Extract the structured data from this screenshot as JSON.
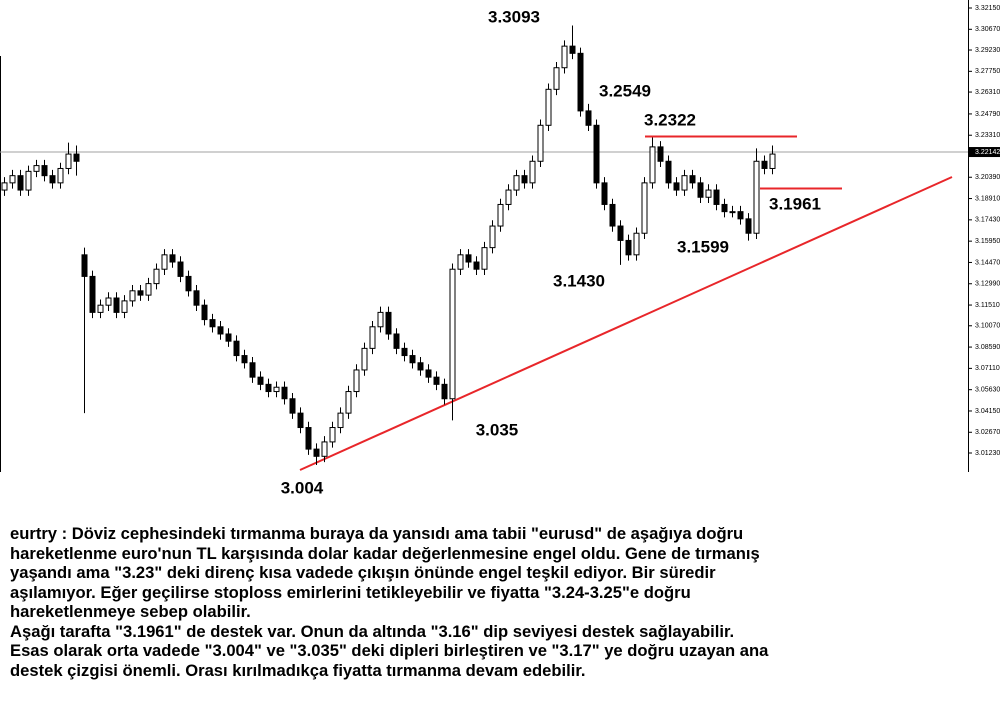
{
  "chart_data": {
    "type": "candlestick",
    "up_color": "#ffffff",
    "down_color": "#000000",
    "wick_color": "#000000",
    "ylim": [
      3.004,
      3.3345
    ],
    "yticks": [
      {
        "value": 3.3215,
        "label": "3.32150"
      },
      {
        "value": 3.3067,
        "label": "3.30670"
      },
      {
        "value": 3.2923,
        "label": "3.29230"
      },
      {
        "value": 3.2775,
        "label": "3.27750"
      },
      {
        "value": 3.2631,
        "label": "3.26310"
      },
      {
        "value": 3.2479,
        "label": "3.24790"
      },
      {
        "value": 3.2331,
        "label": "3.23310"
      },
      {
        "value": 3.2039,
        "label": "3.20390"
      },
      {
        "value": 3.1891,
        "label": "3.18910"
      },
      {
        "value": 3.1743,
        "label": "3.17430"
      },
      {
        "value": 3.1595,
        "label": "3.15950"
      },
      {
        "value": 3.1447,
        "label": "3.14470"
      },
      {
        "value": 3.1299,
        "label": "3.12990"
      },
      {
        "value": 3.1151,
        "label": "3.11510"
      },
      {
        "value": 3.1007,
        "label": "3.10070"
      },
      {
        "value": 3.0859,
        "label": "3.08590"
      },
      {
        "value": 3.0711,
        "label": "3.07110"
      },
      {
        "value": 3.0563,
        "label": "3.05630"
      },
      {
        "value": 3.0415,
        "label": "3.04150"
      },
      {
        "value": 3.0267,
        "label": "3.02670"
      },
      {
        "value": 3.0123,
        "label": "3.01230"
      }
    ],
    "current_price": {
      "value": 3.22142,
      "label": "3.22142"
    },
    "open": [
      3.195,
      3.2,
      3.205,
      3.195,
      3.208,
      3.212,
      3.205,
      3.2,
      3.21,
      3.22,
      3.15,
      3.135,
      3.11,
      3.115,
      3.12,
      3.11,
      3.118,
      3.125,
      3.122,
      3.13,
      3.14,
      3.15,
      3.145,
      3.135,
      3.125,
      3.115,
      3.105,
      3.1,
      3.095,
      3.09,
      3.08,
      3.075,
      3.065,
      3.06,
      3.055,
      3.058,
      3.05,
      3.04,
      3.03,
      3.015,
      3.01,
      3.02,
      3.03,
      3.04,
      3.055,
      3.07,
      3.085,
      3.1,
      3.11,
      3.095,
      3.085,
      3.08,
      3.075,
      3.07,
      3.065,
      3.06,
      3.05,
      3.14,
      3.15,
      3.145,
      3.14,
      3.155,
      3.17,
      3.185,
      3.195,
      3.205,
      3.2,
      3.215,
      3.24,
      3.265,
      3.28,
      3.295,
      3.29,
      3.25,
      3.24,
      3.2,
      3.185,
      3.17,
      3.16,
      3.15,
      3.165,
      3.2,
      3.225,
      3.215,
      3.2,
      3.195,
      3.205,
      3.2,
      3.19,
      3.195,
      3.185,
      3.18,
      3.18,
      3.175,
      3.165,
      3.215,
      3.21
    ],
    "high": [
      3.204,
      3.209,
      3.209,
      3.212,
      3.216,
      3.216,
      3.209,
      3.214,
      3.228,
      3.226,
      3.155,
      3.139,
      3.119,
      3.124,
      3.124,
      3.122,
      3.129,
      3.129,
      3.134,
      3.144,
      3.154,
      3.154,
      3.149,
      3.139,
      3.129,
      3.119,
      3.109,
      3.104,
      3.099,
      3.094,
      3.084,
      3.079,
      3.069,
      3.064,
      3.062,
      3.062,
      3.054,
      3.044,
      3.034,
      3.019,
      3.024,
      3.034,
      3.044,
      3.059,
      3.074,
      3.089,
      3.104,
      3.114,
      3.114,
      3.099,
      3.089,
      3.084,
      3.079,
      3.074,
      3.069,
      3.064,
      3.144,
      3.154,
      3.154,
      3.149,
      3.159,
      3.174,
      3.189,
      3.199,
      3.209,
      3.209,
      3.219,
      3.244,
      3.269,
      3.284,
      3.299,
      3.3093,
      3.294,
      3.2549,
      3.244,
      3.204,
      3.189,
      3.174,
      3.164,
      3.169,
      3.204,
      3.2322,
      3.229,
      3.219,
      3.204,
      3.209,
      3.209,
      3.204,
      3.199,
      3.199,
      3.189,
      3.184,
      3.184,
      3.179,
      3.224,
      3.219,
      3.226
    ],
    "low": [
      3.191,
      3.196,
      3.191,
      3.191,
      3.204,
      3.201,
      3.196,
      3.196,
      3.206,
      3.205,
      3.04,
      3.106,
      3.106,
      3.111,
      3.106,
      3.106,
      3.114,
      3.118,
      3.118,
      3.126,
      3.136,
      3.141,
      3.131,
      3.121,
      3.111,
      3.101,
      3.096,
      3.091,
      3.086,
      3.076,
      3.071,
      3.061,
      3.056,
      3.051,
      3.051,
      3.046,
      3.036,
      3.026,
      3.011,
      3.004,
      3.006,
      3.016,
      3.026,
      3.036,
      3.051,
      3.066,
      3.081,
      3.096,
      3.091,
      3.081,
      3.076,
      3.071,
      3.066,
      3.061,
      3.056,
      3.046,
      3.035,
      3.136,
      3.141,
      3.136,
      3.136,
      3.151,
      3.166,
      3.181,
      3.191,
      3.196,
      3.196,
      3.211,
      3.236,
      3.261,
      3.276,
      3.286,
      3.246,
      3.236,
      3.196,
      3.181,
      3.166,
      3.143,
      3.146,
      3.146,
      3.161,
      3.196,
      3.211,
      3.196,
      3.191,
      3.191,
      3.196,
      3.186,
      3.186,
      3.181,
      3.176,
      3.176,
      3.171,
      3.1599,
      3.161,
      3.206,
      3.206
    ],
    "close": [
      3.2,
      3.205,
      3.195,
      3.208,
      3.212,
      3.205,
      3.2,
      3.21,
      3.22,
      3.215,
      3.135,
      3.11,
      3.115,
      3.12,
      3.11,
      3.118,
      3.125,
      3.122,
      3.13,
      3.14,
      3.15,
      3.145,
      3.135,
      3.125,
      3.115,
      3.105,
      3.1,
      3.095,
      3.09,
      3.08,
      3.075,
      3.065,
      3.06,
      3.055,
      3.058,
      3.05,
      3.04,
      3.03,
      3.015,
      3.01,
      3.02,
      3.03,
      3.04,
      3.055,
      3.07,
      3.085,
      3.1,
      3.11,
      3.095,
      3.085,
      3.08,
      3.075,
      3.07,
      3.065,
      3.06,
      3.05,
      3.14,
      3.15,
      3.145,
      3.14,
      3.155,
      3.17,
      3.185,
      3.195,
      3.205,
      3.2,
      3.215,
      3.24,
      3.265,
      3.28,
      3.295,
      3.29,
      3.25,
      3.24,
      3.2,
      3.185,
      3.17,
      3.16,
      3.15,
      3.165,
      3.2,
      3.225,
      3.215,
      3.2,
      3.195,
      3.205,
      3.2,
      3.19,
      3.195,
      3.185,
      3.18,
      3.18,
      3.175,
      3.165,
      3.215,
      3.21,
      3.22
    ],
    "level_color": "#e8262a",
    "annotations": [
      {
        "value": 3.3093,
        "label": "3.3093"
      },
      {
        "value": 3.2549,
        "label": "3.2549"
      },
      {
        "value": 3.2322,
        "label": "3.2322"
      },
      {
        "value": 3.1961,
        "label": "3.1961"
      },
      {
        "value": 3.1599,
        "label": "3.1599"
      },
      {
        "value": 3.143,
        "label": "3.1430"
      },
      {
        "value": 3.035,
        "label": "3.035"
      },
      {
        "value": 3.004,
        "label": "3.004"
      }
    ]
  },
  "commentary": [
    "eurtry : Döviz cephesindeki tırmanma buraya da yansıdı ama tabii \"eurusd\" de aşağıya doğru",
    "hareketlenme euro'nun TL karşısında dolar kadar değerlenmesine engel oldu. Gene de tırmanış",
    "yaşandı ama \"3.23\" deki direnç kısa vadede çıkışın önünde engel teşkil ediyor. Bir süredir",
    "aşılamıyor. Eğer geçilirse stoploss emirlerini tetikleyebilir ve fiyatta \"3.24-3.25\"e doğru",
    "hareketlenmeye sebep olabilir.",
    "Aşağı tarafta \"3.1961\" de destek var. Onun da altında \"3.16\" dip seviyesi destek sağlayabilir.",
    "Esas olarak orta vadede \"3.004\" ve \"3.035\" deki dipleri birleştiren ve \"3.17\" ye doğru uzayan ana",
    "destek çizgisi önemli. Orası kırılmadıkça fiyatta tırmanma devam edebilir."
  ]
}
